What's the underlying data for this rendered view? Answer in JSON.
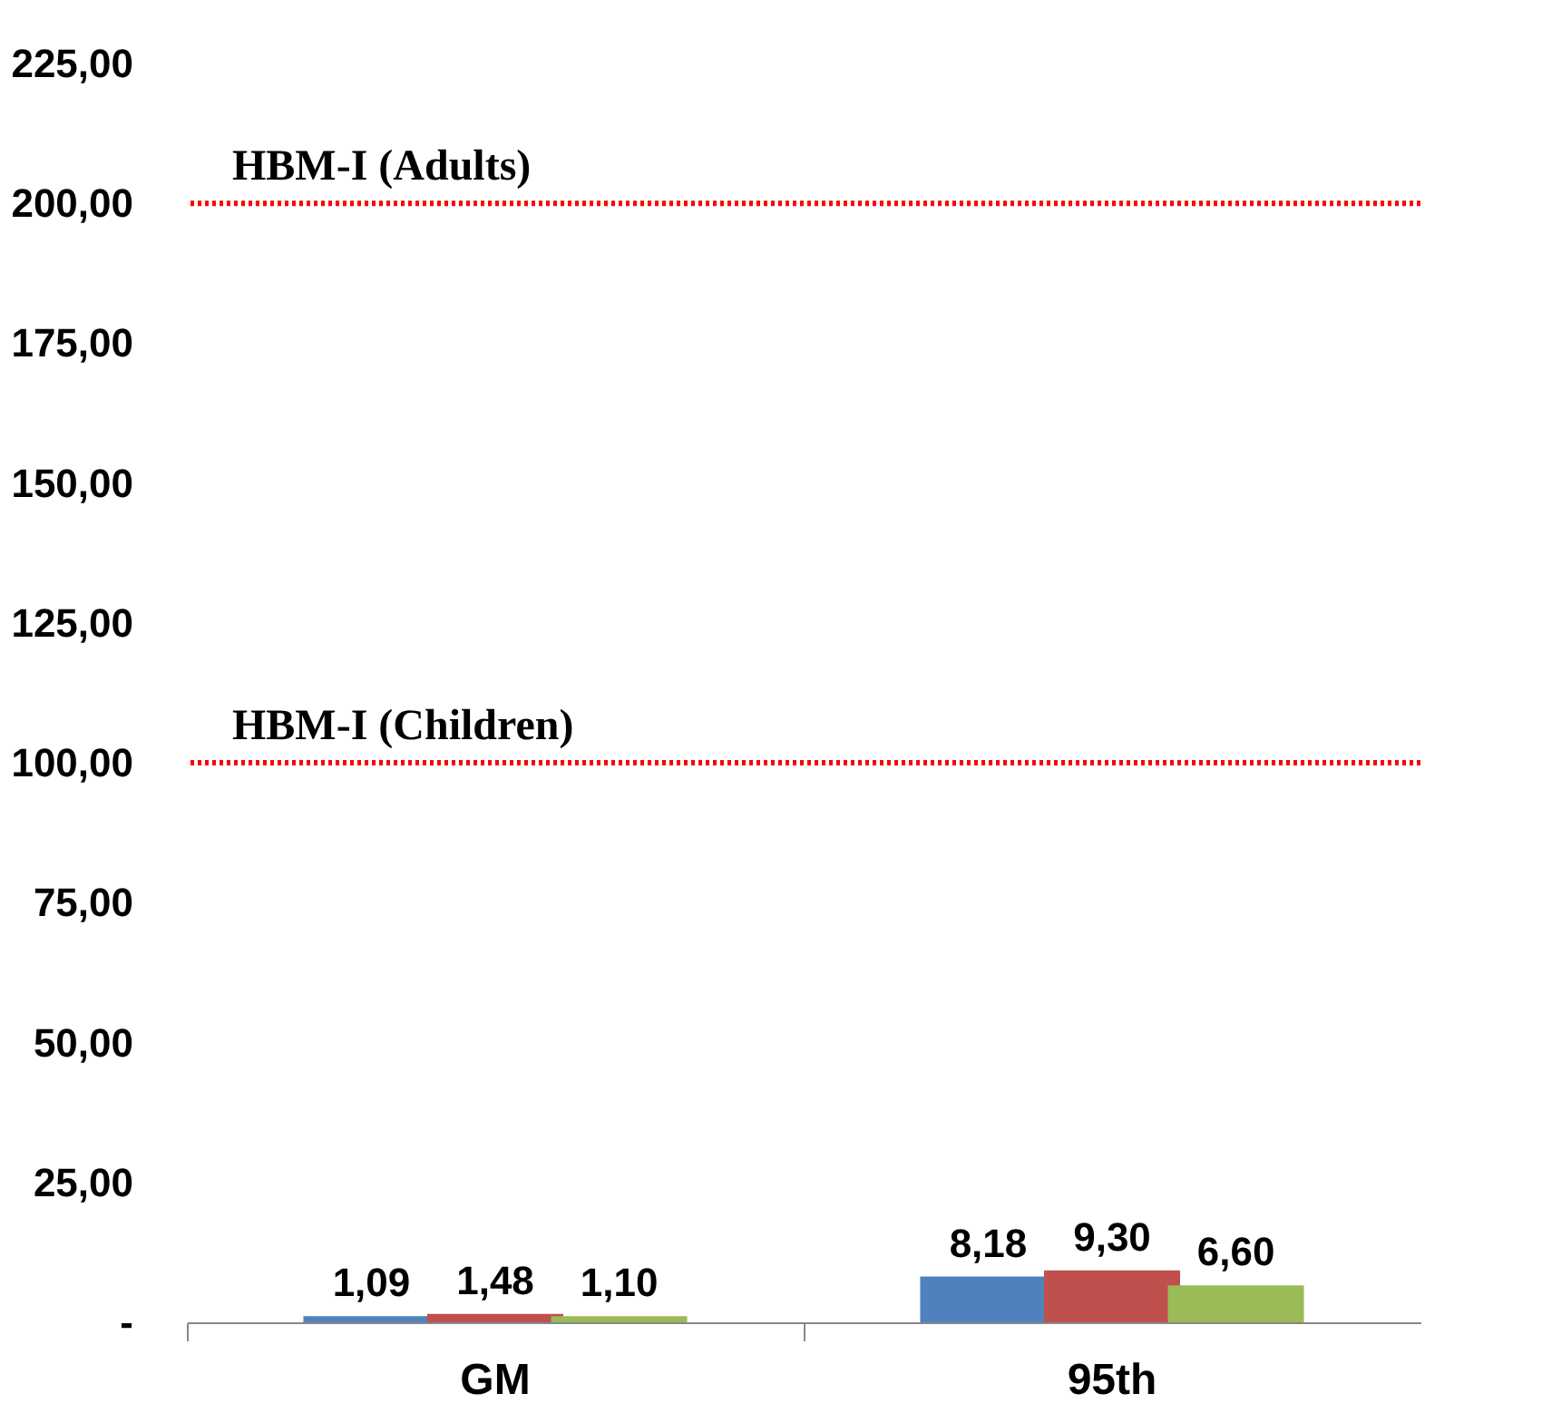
{
  "chart_data": {
    "type": "bar",
    "categories": [
      "GM",
      "95th"
    ],
    "series": [
      {
        "color": "#4f81bd",
        "values": [
          1.09,
          8.18
        ],
        "value_labels": [
          "1,09",
          "8,18"
        ]
      },
      {
        "color": "#c0504d",
        "values": [
          1.48,
          9.3
        ],
        "value_labels": [
          "1,48",
          "9,30"
        ]
      },
      {
        "color": "#9bbb59",
        "values": [
          1.1,
          6.6
        ],
        "value_labels": [
          "1,10",
          "6,60"
        ]
      }
    ],
    "ylim": [
      0,
      225
    ],
    "yticks": [
      {
        "value": 0,
        "label": "-"
      },
      {
        "value": 25,
        "label": "25,00"
      },
      {
        "value": 50,
        "label": "50,00"
      },
      {
        "value": 75,
        "label": "75,00"
      },
      {
        "value": 100,
        "label": "100,00"
      },
      {
        "value": 125,
        "label": "125,00"
      },
      {
        "value": 150,
        "label": "150,00"
      },
      {
        "value": 175,
        "label": "175,00"
      },
      {
        "value": 200,
        "label": "200,00"
      },
      {
        "value": 225,
        "label": "225,00"
      }
    ],
    "ref_lines": [
      {
        "axis": "y",
        "value": 200,
        "label": "HBM-I (Adults)",
        "color": "#ff0000",
        "line_style": "dotted"
      },
      {
        "axis": "y",
        "value": 100,
        "label": "HBM-I (Children)",
        "color": "#ff0000",
        "line_style": "dotted"
      }
    ]
  }
}
